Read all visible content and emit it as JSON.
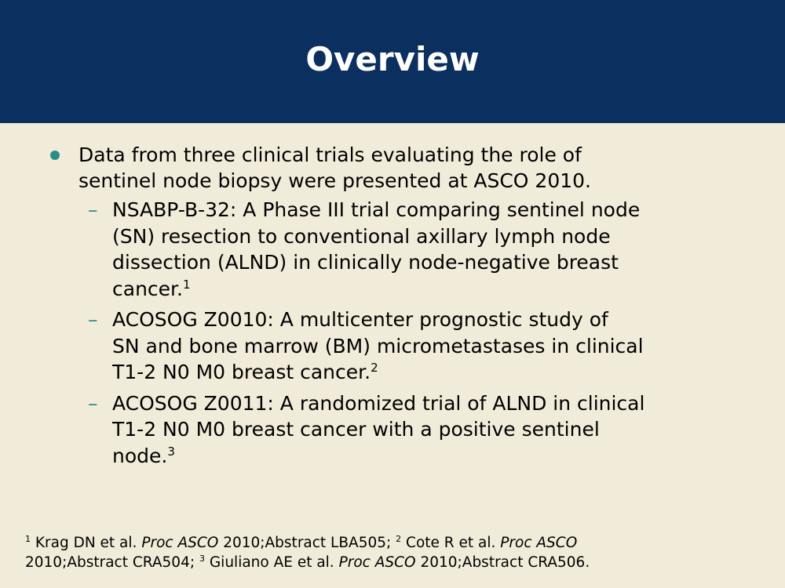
{
  "slide": {
    "title": "Overview",
    "accent_color": "#2b8c8c",
    "header_color": "#0b2f5e",
    "background_color": "#f1ecda",
    "bullet": {
      "text": "Data from three clinical trials evaluating the role of sentinel node biopsy were presented at ASCO 2010.",
      "line1": "Data from three clinical trials evaluating the role of",
      "line2": "sentinel node biopsy were presented at ASCO 2010."
    },
    "subbullets": [
      {
        "lines": [
          "NSABP-B-32: A Phase III trial comparing sentinel node",
          "(SN) resection to conventional axillary lymph node",
          "dissection (ALND) in clinically node-negative breast",
          "cancer."
        ],
        "ref": "1"
      },
      {
        "lines": [
          "ACOSOG Z0010: A multicenter prognostic study of",
          "SN and bone marrow (BM) micrometastases in clinical",
          "T1-2 N0 M0 breast cancer."
        ],
        "ref": "2"
      },
      {
        "lines": [
          "ACOSOG Z0011: A randomized trial of ALND in clinical",
          "T1-2 N0 M0 breast cancer with a positive sentinel",
          "node."
        ],
        "ref": "3"
      }
    ],
    "dash": "–",
    "footnote": {
      "ref1": "1",
      "ref1_author": " Krag DN et al. ",
      "ref1_journal": "Proc ASCO",
      "ref1_rest": " 2010;Abstract LBA505; ",
      "ref2": "2",
      "ref2_author": " Cote R et al. ",
      "ref2_journal": "Proc ASCO",
      "ref2_rest": "2010;Abstract CRA504; ",
      "ref3": "3",
      "ref3_author": " Giuliano AE et al. ",
      "ref3_journal": "Proc ASCO",
      "ref3_rest": " 2010;Abstract CRA506."
    }
  }
}
